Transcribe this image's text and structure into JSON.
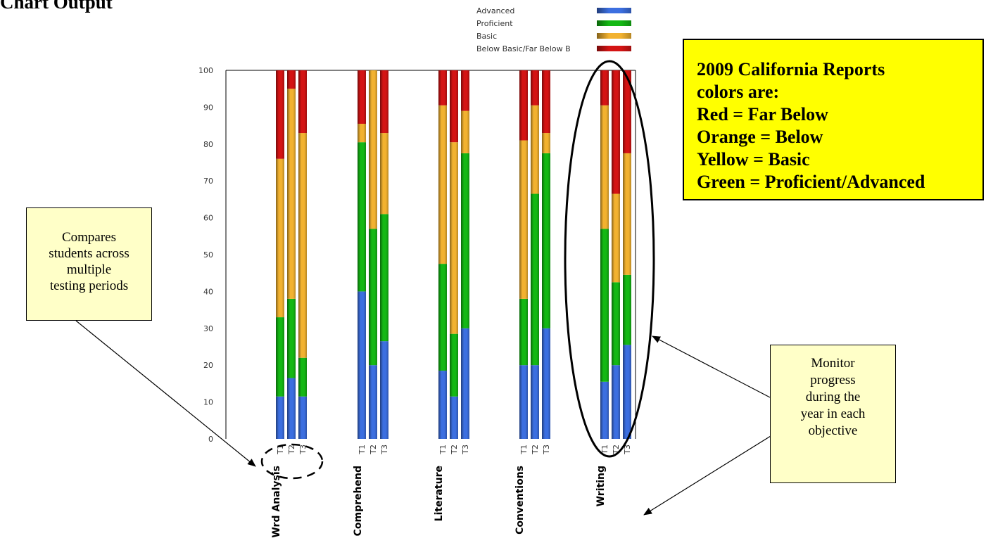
{
  "page_heading": "Chart Output",
  "callouts": {
    "compare": [
      "Compares",
      "students across",
      "multiple",
      "testing periods"
    ],
    "monitor": [
      "Monitor",
      "progress",
      "during the",
      "year in each",
      "objective"
    ],
    "california_legend": [
      "2009 California Reports",
      "colors are:",
      "Red = Far Below",
      "Orange = Below",
      "Yellow = Basic",
      "Green = Proficient/Advanced"
    ]
  },
  "chart_data": {
    "type": "bar",
    "stacked": true,
    "ylim": [
      0,
      100
    ],
    "yticks": [
      "0",
      "10",
      "20",
      "30",
      "40",
      "50",
      "60",
      "70",
      "80",
      "90",
      "100"
    ],
    "legend_position": "top",
    "categories": [
      "Wrd Analysis",
      "Comprehend",
      "Literature",
      "Conventions",
      "Writing"
    ],
    "periods": [
      "T1",
      "T2",
      "T3"
    ],
    "series": [
      {
        "name": "Advanced",
        "color": "#3c6fe0",
        "values": [
          [
            11.5,
            16.5,
            11.5
          ],
          [
            40,
            20,
            26.5
          ],
          [
            18.5,
            11.5,
            30
          ],
          [
            20,
            20,
            30
          ],
          [
            15.5,
            20,
            25.5
          ]
        ]
      },
      {
        "name": "Proficient",
        "color": "#14b814",
        "values": [
          [
            21.5,
            21.5,
            10.5
          ],
          [
            40.5,
            37,
            34.5
          ],
          [
            29,
            17,
            47.5
          ],
          [
            18,
            46.5,
            47.5
          ],
          [
            41.5,
            22.5,
            19
          ]
        ]
      },
      {
        "name": "Basic",
        "color": "#f2b230",
        "values": [
          [
            43,
            57,
            61
          ],
          [
            5,
            43,
            22
          ],
          [
            43,
            52,
            11.5
          ],
          [
            43,
            24,
            5.5
          ],
          [
            33.5,
            24,
            33
          ]
        ]
      },
      {
        "name": "Below Basic/Far Below B",
        "color": "#d41414",
        "values": [
          [
            24,
            5,
            17
          ],
          [
            14.5,
            0,
            17
          ],
          [
            9.5,
            19.5,
            11
          ],
          [
            19,
            9.5,
            17
          ],
          [
            9.5,
            33.5,
            22.5
          ]
        ]
      }
    ]
  }
}
